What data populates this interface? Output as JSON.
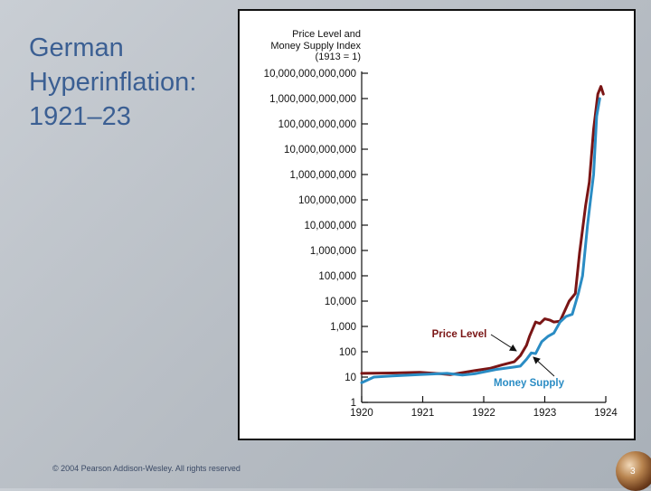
{
  "slide": {
    "title": "German\nHyperinflation:\n1921–23",
    "copyright": "© 2004 Pearson Addison-Wesley. All rights reserved",
    "page_number": "3"
  },
  "colors": {
    "price_level": "#7a1515",
    "money_supply": "#2a8cc4",
    "title_text": "#3b5f93"
  },
  "chart_data": {
    "type": "line",
    "y_title": "Price Level and\nMoney Supply Index\n(1913 = 1)",
    "y_scale": "log10",
    "ylim": [
      1,
      10000000000000
    ],
    "y_ticks": [
      {
        "value": 1,
        "label": "1"
      },
      {
        "value": 10,
        "label": "10"
      },
      {
        "value": 100,
        "label": "100"
      },
      {
        "value": 1000,
        "label": "1,000"
      },
      {
        "value": 10000,
        "label": "10,000"
      },
      {
        "value": 100000,
        "label": "100,000"
      },
      {
        "value": 1000000,
        "label": "1,000,000"
      },
      {
        "value": 10000000,
        "label": "10,000,000"
      },
      {
        "value": 100000000,
        "label": "100,000,000"
      },
      {
        "value": 1000000000,
        "label": "1,000,000,000"
      },
      {
        "value": 10000000000,
        "label": "10,000,000,000"
      },
      {
        "value": 100000000000,
        "label": "100,000,000,000"
      },
      {
        "value": 1000000000000,
        "label": "1,000,000,000,000"
      },
      {
        "value": 10000000000000,
        "label": "10,000,000,000,000"
      }
    ],
    "xlim": [
      1920,
      1924
    ],
    "x_ticks": [
      {
        "value": 1920,
        "label": "1920"
      },
      {
        "value": 1921,
        "label": "1921"
      },
      {
        "value": 1922,
        "label": "1922"
      },
      {
        "value": 1923,
        "label": "1923"
      },
      {
        "value": 1924,
        "label": "1924"
      }
    ],
    "series": [
      {
        "name": "Price Level",
        "color": "#7a1515",
        "points": [
          [
            1920.0,
            14
          ],
          [
            1920.5,
            14.5
          ],
          [
            1920.95,
            15.5
          ],
          [
            1921.3,
            13.5
          ],
          [
            1921.45,
            12.5
          ],
          [
            1921.65,
            15
          ],
          [
            1921.85,
            18
          ],
          [
            1922.1,
            22
          ],
          [
            1922.3,
            30
          ],
          [
            1922.5,
            40
          ],
          [
            1922.6,
            70
          ],
          [
            1922.7,
            180
          ],
          [
            1922.75,
            400
          ],
          [
            1922.85,
            1500
          ],
          [
            1922.92,
            1300
          ],
          [
            1923.0,
            2000
          ],
          [
            1923.08,
            1800
          ],
          [
            1923.15,
            1500
          ],
          [
            1923.25,
            1600
          ],
          [
            1923.4,
            10000
          ],
          [
            1923.5,
            20000
          ],
          [
            1923.57,
            800000
          ],
          [
            1923.67,
            60000000
          ],
          [
            1923.73,
            500000000
          ],
          [
            1923.8,
            60000000000
          ],
          [
            1923.87,
            1500000000000
          ],
          [
            1923.92,
            3000000000000
          ],
          [
            1923.96,
            1500000000000
          ]
        ]
      },
      {
        "name": "Money Supply",
        "color": "#2a8cc4",
        "points": [
          [
            1920.0,
            6
          ],
          [
            1920.2,
            10
          ],
          [
            1920.5,
            11
          ],
          [
            1920.95,
            12.5
          ],
          [
            1921.4,
            14
          ],
          [
            1921.65,
            12
          ],
          [
            1921.85,
            13.5
          ],
          [
            1922.2,
            20
          ],
          [
            1922.5,
            25
          ],
          [
            1922.6,
            27
          ],
          [
            1922.7,
            50
          ],
          [
            1922.78,
            90
          ],
          [
            1922.85,
            85
          ],
          [
            1922.95,
            250
          ],
          [
            1923.05,
            400
          ],
          [
            1923.15,
            550
          ],
          [
            1923.25,
            1500
          ],
          [
            1923.35,
            2500
          ],
          [
            1923.45,
            3000
          ],
          [
            1923.55,
            20000
          ],
          [
            1923.62,
            100000
          ],
          [
            1923.7,
            10000000
          ],
          [
            1923.75,
            100000000
          ],
          [
            1923.8,
            1000000000
          ],
          [
            1923.85,
            200000000000
          ],
          [
            1923.9,
            1000000000000
          ]
        ]
      }
    ]
  }
}
